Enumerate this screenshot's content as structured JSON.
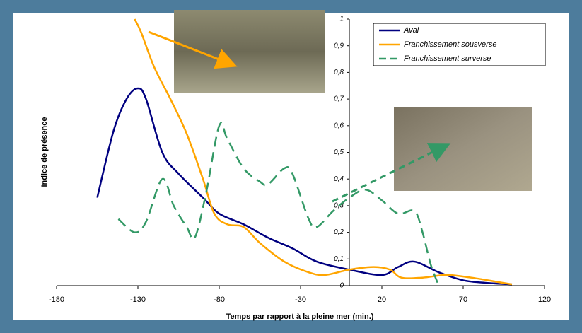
{
  "chart_data": {
    "type": "line",
    "x_label": "Temps par rapport à la pleine mer (min.)",
    "y_label": "Indice de présence",
    "xlim": [
      -180,
      120
    ],
    "xticks": [
      -180,
      -130,
      -80,
      -30,
      20,
      70,
      120
    ],
    "ylim": [
      0,
      1
    ],
    "yticks": [
      0,
      {
        "value": 0.1,
        "label": "0,1"
      },
      {
        "value": 0.2,
        "label": "0,2"
      },
      {
        "value": 0.3,
        "label": "0,3"
      },
      {
        "value": 0.4,
        "label": "0,4"
      },
      {
        "value": 0.5,
        "label": "0,5"
      },
      {
        "value": 0.6,
        "label": "0,6"
      },
      {
        "value": 0.7,
        "label": "0,7"
      },
      {
        "value": 0.8,
        "label": "0,8"
      },
      {
        "value": 0.9,
        "label": "0,9"
      },
      1
    ],
    "legend": "top-right",
    "series": [
      {
        "name": "Aval",
        "color": "#000080",
        "dashed": false,
        "x": [
          -155,
          -145,
          -137,
          -130,
          -125,
          -115,
          -105,
          -90,
          -80,
          -65,
          -50,
          -35,
          -20,
          0,
          20,
          30,
          40,
          55,
          70,
          85,
          100
        ],
        "values": [
          0.33,
          0.58,
          0.7,
          0.74,
          0.7,
          0.5,
          0.42,
          0.33,
          0.27,
          0.23,
          0.18,
          0.14,
          0.09,
          0.06,
          0.04,
          0.07,
          0.09,
          0.05,
          0.02,
          0.01,
          0.005
        ]
      },
      {
        "name": "Franchissement sousverse",
        "color": "#ffa500",
        "dashed": false,
        "x": [
          -132,
          -128,
          -120,
          -110,
          -100,
          -90,
          -83,
          -75,
          -65,
          -55,
          -40,
          -25,
          -15,
          0,
          15,
          25,
          32,
          45,
          60,
          75,
          90,
          100
        ],
        "values": [
          1,
          0.95,
          0.82,
          0.7,
          0.57,
          0.4,
          0.27,
          0.23,
          0.22,
          0.16,
          0.09,
          0.05,
          0.04,
          0.06,
          0.07,
          0.06,
          0.03,
          0.03,
          0.04,
          0.03,
          0.015,
          0.005
        ]
      },
      {
        "name": "Franchissement surverse",
        "color": "#339966",
        "dashed": true,
        "x": [
          -142,
          -132,
          -125,
          -115,
          -108,
          -100,
          -95,
          -88,
          -80,
          -75,
          -65,
          -55,
          -50,
          -40,
          -35,
          -25,
          -20,
          -10,
          0,
          10,
          20,
          30,
          40,
          45,
          50,
          55
        ],
        "values": [
          0.25,
          0.2,
          0.24,
          0.4,
          0.3,
          0.22,
          0.18,
          0.35,
          0.6,
          0.55,
          0.44,
          0.39,
          0.38,
          0.44,
          0.42,
          0.25,
          0.22,
          0.28,
          0.33,
          0.36,
          0.32,
          0.27,
          0.28,
          0.2,
          0.08,
          0
        ]
      }
    ]
  }
}
